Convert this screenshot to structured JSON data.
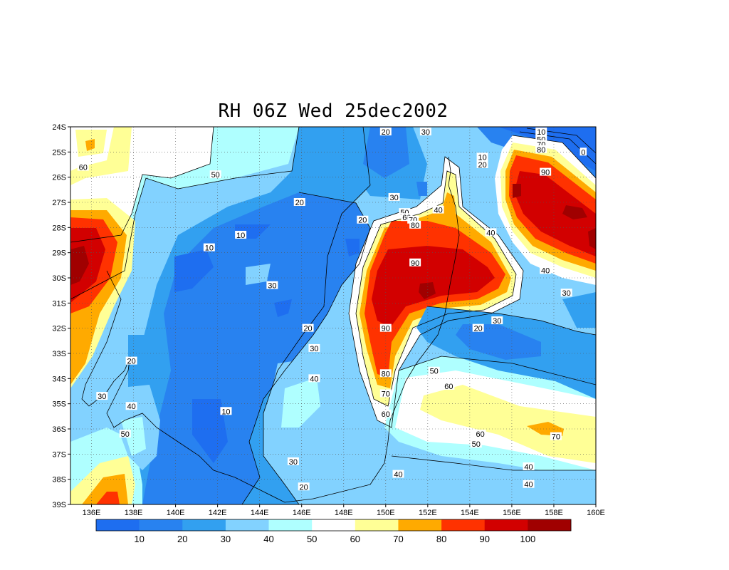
{
  "chart_data": {
    "type": "heatmap",
    "title": "RH 06Z Wed 25dec2002",
    "x_ticks": [
      "136E",
      "138E",
      "140E",
      "142E",
      "144E",
      "146E",
      "148E",
      "150E",
      "152E",
      "154E",
      "156E",
      "158E",
      "160E"
    ],
    "y_ticks": [
      "24S",
      "25S",
      "26S",
      "27S",
      "28S",
      "29S",
      "30S",
      "31S",
      "32S",
      "33S",
      "34S",
      "35S",
      "36S",
      "37S",
      "38S",
      "39S"
    ],
    "xlim": [
      135,
      160
    ],
    "ylim": [
      -39,
      -24
    ],
    "grid": true,
    "colorbar": {
      "labels": [
        "10",
        "20",
        "30",
        "40",
        "50",
        "60",
        "70",
        "80",
        "90",
        "100"
      ],
      "colors": [
        "#1e6ef0",
        "#2882f0",
        "#32a0f0",
        "#82d2ff",
        "#afffff",
        "#ffffff",
        "#ffff96",
        "#ffaa00",
        "#ff3200",
        "#d20000",
        "#a00000"
      ]
    },
    "contour_labels": [
      {
        "text": "60",
        "lon": 135.6,
        "lat": -25.6
      },
      {
        "text": "50",
        "lon": 141.9,
        "lat": -25.9
      },
      {
        "text": "20",
        "lon": 145.9,
        "lat": -27.0
      },
      {
        "text": "10",
        "lon": 143.1,
        "lat": -28.3
      },
      {
        "text": "10",
        "lon": 141.6,
        "lat": -28.8
      },
      {
        "text": "20",
        "lon": 148.9,
        "lat": -27.7
      },
      {
        "text": "30",
        "lon": 144.6,
        "lat": -30.3
      },
      {
        "text": "20",
        "lon": 146.3,
        "lat": -32.0
      },
      {
        "text": "30",
        "lon": 146.6,
        "lat": -32.8
      },
      {
        "text": "40",
        "lon": 146.6,
        "lat": -34.0
      },
      {
        "text": "20",
        "lon": 137.9,
        "lat": -33.3
      },
      {
        "text": "30",
        "lon": 136.5,
        "lat": -34.7
      },
      {
        "text": "40",
        "lon": 137.9,
        "lat": -35.1
      },
      {
        "text": "50",
        "lon": 137.6,
        "lat": -36.2
      },
      {
        "text": "10",
        "lon": 142.4,
        "lat": -35.3
      },
      {
        "text": "30",
        "lon": 145.6,
        "lat": -37.3
      },
      {
        "text": "20",
        "lon": 146.1,
        "lat": -38.3
      },
      {
        "text": "20",
        "lon": 150.0,
        "lat": -24.2
      },
      {
        "text": "30",
        "lon": 151.9,
        "lat": -24.2
      },
      {
        "text": "30",
        "lon": 150.4,
        "lat": -26.8
      },
      {
        "text": "40",
        "lon": 152.5,
        "lat": -27.3
      },
      {
        "text": "50",
        "lon": 150.9,
        "lat": -27.4
      },
      {
        "text": "60",
        "lon": 151.0,
        "lat": -27.6
      },
      {
        "text": "70",
        "lon": 151.3,
        "lat": -27.7
      },
      {
        "text": "80",
        "lon": 151.4,
        "lat": -27.9
      },
      {
        "text": "90",
        "lon": 151.4,
        "lat": -29.4
      },
      {
        "text": "90",
        "lon": 150.0,
        "lat": -32.0
      },
      {
        "text": "80",
        "lon": 150.0,
        "lat": -33.8
      },
      {
        "text": "70",
        "lon": 150.0,
        "lat": -34.6
      },
      {
        "text": "60",
        "lon": 150.0,
        "lat": -35.4
      },
      {
        "text": "50",
        "lon": 152.3,
        "lat": -33.7
      },
      {
        "text": "60",
        "lon": 153.0,
        "lat": -34.3
      },
      {
        "text": "60",
        "lon": 154.5,
        "lat": -36.2
      },
      {
        "text": "50",
        "lon": 154.3,
        "lat": -36.6
      },
      {
        "text": "70",
        "lon": 158.1,
        "lat": -36.3
      },
      {
        "text": "40",
        "lon": 150.6,
        "lat": -37.8
      },
      {
        "text": "40",
        "lon": 156.8,
        "lat": -37.5
      },
      {
        "text": "40",
        "lon": 156.8,
        "lat": -38.2
      },
      {
        "text": "20",
        "lon": 154.4,
        "lat": -32.0
      },
      {
        "text": "30",
        "lon": 155.3,
        "lat": -31.7
      },
      {
        "text": "10",
        "lon": 154.6,
        "lat": -25.2
      },
      {
        "text": "20",
        "lon": 154.6,
        "lat": -25.5
      },
      {
        "text": "40",
        "lon": 155.0,
        "lat": -28.2
      },
      {
        "text": "40",
        "lon": 157.6,
        "lat": -29.7
      },
      {
        "text": "30",
        "lon": 158.6,
        "lat": -30.6
      },
      {
        "text": "10",
        "lon": 157.4,
        "lat": -24.2
      },
      {
        "text": "50",
        "lon": 157.4,
        "lat": -24.5
      },
      {
        "text": "70",
        "lon": 157.4,
        "lat": -24.7
      },
      {
        "text": "80",
        "lon": 157.4,
        "lat": -24.9
      },
      {
        "text": "90",
        "lon": 157.6,
        "lat": -25.8
      },
      {
        "text": "0",
        "lon": 159.4,
        "lat": -25.0
      }
    ]
  }
}
